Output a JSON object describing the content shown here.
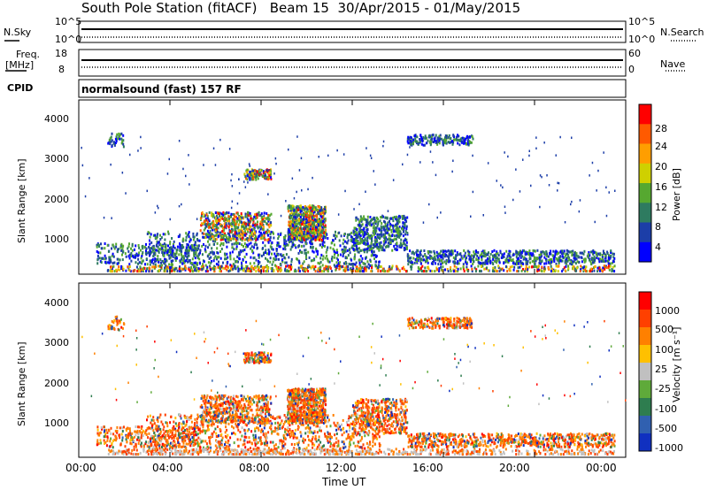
{
  "header": {
    "title": "South Pole Station (fitACF)   Beam 15  30/Apr/2015 - 01/May/2015"
  },
  "params": {
    "nsky_label": "N.Sky",
    "nsearch_label": "N.Search",
    "freq_label": "Freq.",
    "freq_unit": "[MHz]",
    "nave_label": "Nave",
    "cpid_label": "CPID",
    "cpid_value": "normalsound (fast) 157 RF",
    "noise_ticks": [
      "10^5",
      "10^0"
    ],
    "freq_ticks": [
      "18",
      "8"
    ],
    "nave_ticks": [
      "60",
      "0"
    ]
  },
  "chart_data": [
    {
      "type": "heatmap",
      "name": "power",
      "ylabel": "Slant Range [km]",
      "y_ticks": [
        "4000",
        "3000",
        "2000",
        "1000"
      ],
      "colorbar_label": "Power [dB]",
      "colorbar_ticks": [
        "28",
        "24",
        "20",
        "16",
        "12",
        "8",
        "4"
      ],
      "colors": [
        "#0000ff",
        "#1c3ea8",
        "#2e7b60",
        "#56a830",
        "#cfd000",
        "#ff9e00",
        "#ff5a00",
        "#ff0000"
      ]
    },
    {
      "type": "heatmap",
      "name": "velocity",
      "ylabel": "Slant Range [km]",
      "y_ticks": [
        "4000",
        "3000",
        "2000",
        "1000"
      ],
      "colorbar_label": "Velocity [m s⁻¹]",
      "colorbar_ticks": [
        "1000",
        "500",
        "100",
        "25",
        "-25",
        "-100",
        "-500",
        "-1000"
      ],
      "colors": [
        "#1030c0",
        "#3060b0",
        "#2e7d4f",
        "#5faa3a",
        "#c0c0c0",
        "#ffc000",
        "#ff8000",
        "#ff4000",
        "#ff0000"
      ]
    }
  ],
  "x_axis": {
    "label": "Time UT",
    "ticks": [
      "00:00",
      "04:00",
      "08:00",
      "12:00",
      "16:00",
      "20:00",
      "00:00"
    ]
  }
}
